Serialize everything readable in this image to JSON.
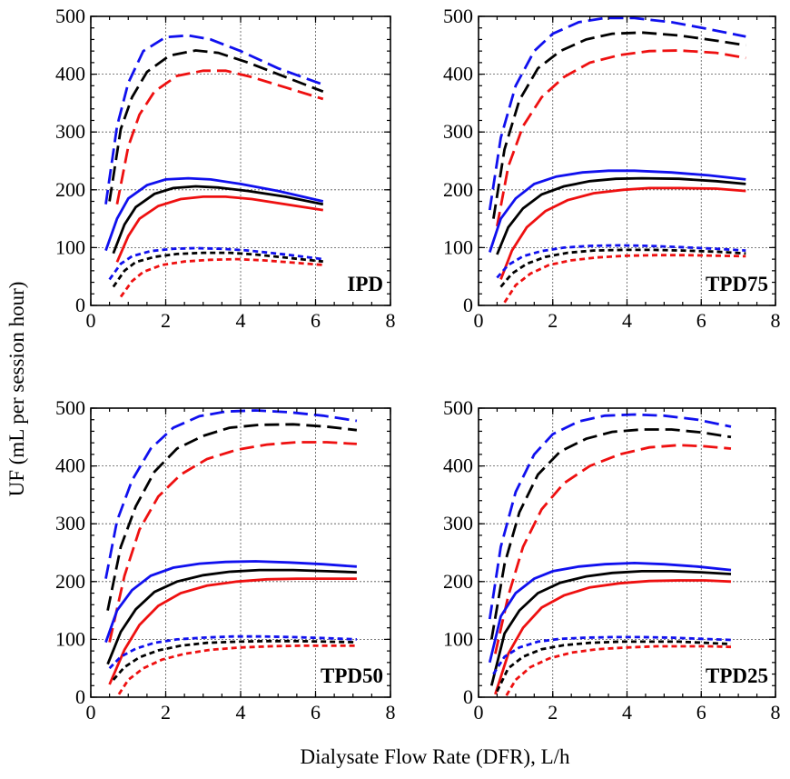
{
  "axis_titles": {
    "xlabel": "Dialysate Flow Rate (DFR), L/h",
    "ylabel": "UF (mL per session hour)"
  },
  "colors": {
    "blue": "#1010ee",
    "black": "#000000",
    "red": "#ee1010"
  },
  "dash_styles": {
    "long": "16 7",
    "solid": "",
    "short": "6 4"
  },
  "chart_data": [
    {
      "type": "line",
      "panel": "IPD",
      "xlim": [
        0,
        8
      ],
      "ylim": [
        0,
        500
      ],
      "xticks": [
        0,
        2,
        4,
        6,
        8
      ],
      "yticks": [
        0,
        100,
        200,
        300,
        400,
        500
      ],
      "grid": true,
      "label_position": "bottom-right",
      "series": [
        {
          "color": "blue",
          "dash": "long",
          "x": [
            0.4,
            0.7,
            1.0,
            1.4,
            2.0,
            2.6,
            3.2,
            4.0,
            5.0,
            6.2
          ],
          "y": [
            175,
            310,
            385,
            440,
            464,
            467,
            460,
            440,
            410,
            382
          ]
        },
        {
          "color": "black",
          "dash": "long",
          "x": [
            0.5,
            0.8,
            1.1,
            1.5,
            2.1,
            2.8,
            3.4,
            4.2,
            5.2,
            6.2
          ],
          "y": [
            180,
            305,
            360,
            404,
            432,
            441,
            437,
            420,
            395,
            370
          ]
        },
        {
          "color": "red",
          "dash": "long",
          "x": [
            0.7,
            1.0,
            1.3,
            1.7,
            2.3,
            3.0,
            3.6,
            4.3,
            5.2,
            6.2
          ],
          "y": [
            175,
            275,
            330,
            370,
            397,
            406,
            406,
            395,
            377,
            357
          ]
        },
        {
          "color": "blue",
          "dash": "solid",
          "x": [
            0.4,
            0.7,
            1.0,
            1.5,
            2.0,
            2.6,
            3.2,
            4.0,
            5.0,
            6.2
          ],
          "y": [
            95,
            150,
            185,
            208,
            218,
            220,
            218,
            210,
            198,
            180
          ]
        },
        {
          "color": "black",
          "dash": "solid",
          "x": [
            0.6,
            0.9,
            1.2,
            1.7,
            2.2,
            2.8,
            3.4,
            4.2,
            5.2,
            6.2
          ],
          "y": [
            90,
            140,
            170,
            193,
            203,
            206,
            204,
            198,
            188,
            175
          ]
        },
        {
          "color": "red",
          "dash": "solid",
          "x": [
            0.7,
            1.0,
            1.3,
            1.8,
            2.4,
            3.0,
            3.6,
            4.3,
            5.2,
            6.2
          ],
          "y": [
            75,
            120,
            150,
            172,
            184,
            188,
            188,
            184,
            175,
            165
          ]
        },
        {
          "color": "blue",
          "dash": "short",
          "x": [
            0.5,
            0.8,
            1.1,
            1.6,
            2.2,
            2.8,
            3.5,
            4.2,
            5.2,
            6.2
          ],
          "y": [
            45,
            72,
            85,
            94,
            98,
            99,
            98,
            95,
            88,
            80
          ]
        },
        {
          "color": "black",
          "dash": "short",
          "x": [
            0.6,
            0.9,
            1.2,
            1.7,
            2.3,
            3.0,
            3.7,
            4.4,
            5.3,
            6.2
          ],
          "y": [
            32,
            60,
            75,
            84,
            89,
            91,
            91,
            88,
            82,
            76
          ]
        },
        {
          "color": "red",
          "dash": "short",
          "x": [
            0.8,
            1.1,
            1.4,
            1.9,
            2.5,
            3.2,
            3.9,
            4.6,
            5.4,
            6.2
          ],
          "y": [
            15,
            42,
            58,
            70,
            76,
            79,
            80,
            78,
            74,
            70
          ]
        }
      ]
    },
    {
      "type": "line",
      "panel": "TPD75",
      "xlim": [
        0,
        8
      ],
      "ylim": [
        0,
        500
      ],
      "xticks": [
        0,
        2,
        4,
        6,
        8
      ],
      "yticks": [
        0,
        100,
        200,
        300,
        400,
        500
      ],
      "grid": true,
      "label_position": "bottom-right",
      "series": [
        {
          "color": "blue",
          "dash": "long",
          "x": [
            0.3,
            0.6,
            1.0,
            1.5,
            2.0,
            2.7,
            3.4,
            4.2,
            5.2,
            6.2,
            7.2
          ],
          "y": [
            165,
            290,
            380,
            440,
            470,
            490,
            497,
            497,
            490,
            478,
            465
          ]
        },
        {
          "color": "black",
          "dash": "long",
          "x": [
            0.4,
            0.7,
            1.1,
            1.6,
            2.2,
            2.9,
            3.6,
            4.4,
            5.4,
            6.4,
            7.2
          ],
          "y": [
            150,
            270,
            355,
            410,
            440,
            460,
            470,
            472,
            467,
            458,
            450
          ]
        },
        {
          "color": "red",
          "dash": "long",
          "x": [
            0.5,
            0.8,
            1.2,
            1.7,
            2.3,
            3.0,
            3.8,
            4.6,
            5.4,
            6.4,
            7.2
          ],
          "y": [
            137,
            240,
            310,
            360,
            395,
            420,
            433,
            440,
            441,
            437,
            428
          ]
        },
        {
          "color": "blue",
          "dash": "solid",
          "x": [
            0.3,
            0.6,
            1.0,
            1.5,
            2.1,
            2.8,
            3.5,
            4.2,
            5.2,
            6.2,
            7.2
          ],
          "y": [
            92,
            150,
            185,
            210,
            223,
            230,
            233,
            233,
            230,
            225,
            218
          ]
        },
        {
          "color": "black",
          "dash": "solid",
          "x": [
            0.5,
            0.8,
            1.2,
            1.7,
            2.3,
            3.0,
            3.7,
            4.4,
            5.4,
            6.4,
            7.2
          ],
          "y": [
            88,
            135,
            168,
            192,
            206,
            215,
            219,
            220,
            219,
            215,
            210
          ]
        },
        {
          "color": "red",
          "dash": "solid",
          "x": [
            0.6,
            0.9,
            1.3,
            1.8,
            2.4,
            3.1,
            3.9,
            4.6,
            5.4,
            6.4,
            7.2
          ],
          "y": [
            45,
            95,
            135,
            163,
            182,
            194,
            200,
            203,
            203,
            202,
            198
          ]
        },
        {
          "color": "blue",
          "dash": "short",
          "x": [
            0.5,
            0.8,
            1.2,
            1.7,
            2.3,
            3.0,
            3.8,
            4.6,
            5.4,
            6.4,
            7.2
          ],
          "y": [
            48,
            70,
            85,
            94,
            100,
            103,
            104,
            103,
            101,
            98,
            95
          ]
        },
        {
          "color": "black",
          "dash": "short",
          "x": [
            0.6,
            0.9,
            1.3,
            1.8,
            2.4,
            3.1,
            3.9,
            4.7,
            5.5,
            6.4,
            7.2
          ],
          "y": [
            32,
            55,
            72,
            84,
            91,
            95,
            96,
            96,
            95,
            93,
            90
          ]
        },
        {
          "color": "red",
          "dash": "short",
          "x": [
            0.7,
            1.0,
            1.4,
            1.9,
            2.5,
            3.2,
            4.0,
            4.8,
            5.6,
            6.4,
            7.2
          ],
          "y": [
            5,
            35,
            55,
            70,
            78,
            83,
            86,
            87,
            87,
            86,
            85
          ]
        }
      ]
    },
    {
      "type": "line",
      "panel": "TPD50",
      "xlim": [
        0,
        8
      ],
      "ylim": [
        0,
        500
      ],
      "xticks": [
        0,
        2,
        4,
        6,
        8
      ],
      "yticks": [
        0,
        100,
        200,
        300,
        400,
        500
      ],
      "grid": true,
      "label_position": "bottom-right",
      "series": [
        {
          "color": "blue",
          "dash": "long",
          "x": [
            0.4,
            0.7,
            1.1,
            1.6,
            2.2,
            2.9,
            3.6,
            4.4,
            5.3,
            6.2,
            7.1
          ],
          "y": [
            205,
            305,
            375,
            430,
            466,
            486,
            494,
            496,
            493,
            487,
            478
          ]
        },
        {
          "color": "black",
          "dash": "long",
          "x": [
            0.45,
            0.8,
            1.2,
            1.7,
            2.3,
            3.0,
            3.7,
            4.5,
            5.4,
            6.3,
            7.1
          ],
          "y": [
            150,
            260,
            330,
            390,
            430,
            452,
            466,
            471,
            472,
            468,
            462
          ]
        },
        {
          "color": "red",
          "dash": "long",
          "x": [
            0.5,
            0.9,
            1.3,
            1.8,
            2.4,
            3.1,
            3.9,
            4.7,
            5.5,
            6.3,
            7.1
          ],
          "y": [
            95,
            210,
            290,
            347,
            385,
            412,
            428,
            437,
            441,
            441,
            438
          ]
        },
        {
          "color": "blue",
          "dash": "solid",
          "x": [
            0.4,
            0.7,
            1.1,
            1.6,
            2.2,
            2.9,
            3.6,
            4.4,
            5.3,
            6.2,
            7.1
          ],
          "y": [
            95,
            150,
            185,
            210,
            224,
            231,
            234,
            235,
            233,
            230,
            226
          ]
        },
        {
          "color": "black",
          "dash": "solid",
          "x": [
            0.45,
            0.8,
            1.2,
            1.7,
            2.3,
            3.0,
            3.7,
            4.5,
            5.4,
            6.3,
            7.1
          ],
          "y": [
            57,
            113,
            152,
            182,
            200,
            211,
            217,
            220,
            220,
            218,
            216
          ]
        },
        {
          "color": "red",
          "dash": "solid",
          "x": [
            0.5,
            0.9,
            1.3,
            1.8,
            2.4,
            3.1,
            3.9,
            4.7,
            5.5,
            6.3,
            7.1
          ],
          "y": [
            22,
            82,
            125,
            158,
            180,
            193,
            200,
            204,
            205,
            205,
            205
          ]
        },
        {
          "color": "blue",
          "dash": "short",
          "x": [
            0.5,
            0.8,
            1.2,
            1.7,
            2.3,
            3.0,
            3.8,
            4.6,
            5.4,
            6.3,
            7.1
          ],
          "y": [
            50,
            70,
            84,
            94,
            100,
            103,
            105,
            105,
            104,
            102,
            100
          ]
        },
        {
          "color": "black",
          "dash": "short",
          "x": [
            0.6,
            0.9,
            1.3,
            1.8,
            2.4,
            3.1,
            3.9,
            4.7,
            5.5,
            6.3,
            7.1
          ],
          "y": [
            30,
            52,
            69,
            81,
            89,
            94,
            96,
            97,
            97,
            96,
            95
          ]
        },
        {
          "color": "red",
          "dash": "short",
          "x": [
            0.75,
            1.0,
            1.4,
            1.9,
            2.5,
            3.2,
            4.0,
            4.8,
            5.6,
            6.3,
            7.1
          ],
          "y": [
            5,
            30,
            50,
            65,
            75,
            82,
            86,
            88,
            89,
            89,
            89
          ]
        }
      ]
    },
    {
      "type": "line",
      "panel": "TPD25",
      "xlim": [
        0,
        8
      ],
      "ylim": [
        0,
        500
      ],
      "xticks": [
        0,
        2,
        4,
        6,
        8
      ],
      "yticks": [
        0,
        100,
        200,
        300,
        400,
        500
      ],
      "grid": true,
      "label_position": "bottom-right",
      "series": [
        {
          "color": "blue",
          "dash": "long",
          "x": [
            0.3,
            0.6,
            1.0,
            1.5,
            2.0,
            2.7,
            3.4,
            4.2,
            5.0,
            5.9,
            6.8
          ],
          "y": [
            135,
            260,
            355,
            420,
            455,
            477,
            487,
            489,
            487,
            480,
            468
          ]
        },
        {
          "color": "black",
          "dash": "long",
          "x": [
            0.35,
            0.7,
            1.1,
            1.6,
            2.2,
            2.9,
            3.6,
            4.4,
            5.2,
            6.0,
            6.8
          ],
          "y": [
            100,
            230,
            320,
            385,
            425,
            447,
            459,
            463,
            463,
            458,
            450
          ]
        },
        {
          "color": "red",
          "dash": "long",
          "x": [
            0.45,
            0.8,
            1.2,
            1.7,
            2.3,
            3.0,
            3.8,
            4.6,
            5.4,
            6.1,
            6.8
          ],
          "y": [
            75,
            175,
            260,
            325,
            370,
            400,
            420,
            432,
            436,
            434,
            430
          ]
        },
        {
          "color": "blue",
          "dash": "solid",
          "x": [
            0.3,
            0.6,
            1.0,
            1.5,
            2.0,
            2.7,
            3.4,
            4.2,
            5.0,
            5.9,
            6.8
          ],
          "y": [
            60,
            140,
            180,
            205,
            218,
            226,
            230,
            232,
            230,
            226,
            220
          ]
        },
        {
          "color": "black",
          "dash": "solid",
          "x": [
            0.35,
            0.7,
            1.1,
            1.6,
            2.2,
            2.9,
            3.6,
            4.4,
            5.2,
            6.0,
            6.8
          ],
          "y": [
            20,
            110,
            150,
            180,
            198,
            209,
            215,
            218,
            218,
            216,
            213
          ]
        },
        {
          "color": "red",
          "dash": "solid",
          "x": [
            0.45,
            0.8,
            1.2,
            1.7,
            2.3,
            3.0,
            3.8,
            4.6,
            5.4,
            6.1,
            6.8
          ],
          "y": [
            5,
            75,
            120,
            155,
            176,
            190,
            197,
            201,
            202,
            202,
            200
          ]
        },
        {
          "color": "blue",
          "dash": "short",
          "x": [
            0.4,
            0.7,
            1.1,
            1.6,
            2.2,
            2.9,
            3.6,
            4.4,
            5.2,
            6.0,
            6.8
          ],
          "y": [
            40,
            70,
            86,
            96,
            101,
            103,
            104,
            104,
            103,
            101,
            99
          ]
        },
        {
          "color": "black",
          "dash": "short",
          "x": [
            0.5,
            0.8,
            1.2,
            1.7,
            2.3,
            3.0,
            3.8,
            4.6,
            5.4,
            6.1,
            6.8
          ],
          "y": [
            10,
            50,
            70,
            83,
            90,
            94,
            96,
            96,
            96,
            94,
            92
          ]
        },
        {
          "color": "red",
          "dash": "short",
          "x": [
            0.75,
            1.0,
            1.4,
            1.9,
            2.5,
            3.2,
            4.0,
            4.8,
            5.6,
            6.2,
            6.8
          ],
          "y": [
            3,
            30,
            52,
            67,
            77,
            83,
            86,
            88,
            88,
            88,
            87
          ]
        }
      ]
    }
  ]
}
